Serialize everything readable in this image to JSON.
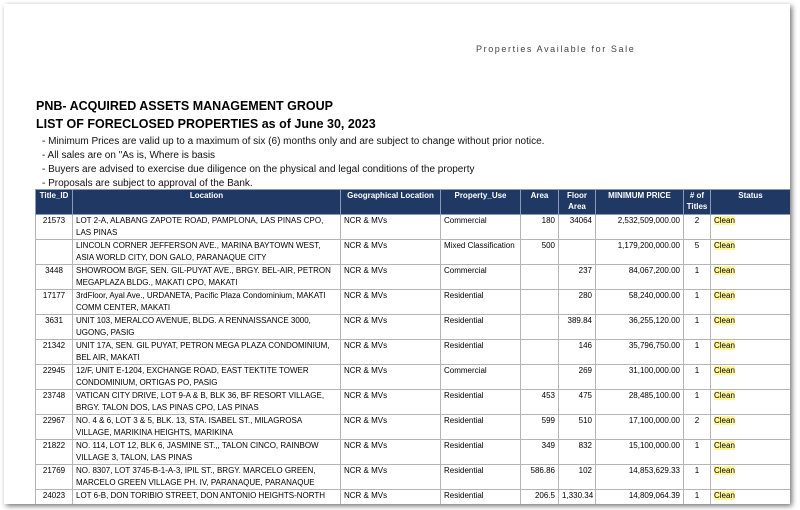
{
  "header": {
    "corner": "Properties Available for Sale",
    "org": "PNB- ACQUIRED ASSETS MANAGEMENT GROUP",
    "title": "LIST OF FORECLOSED PROPERTIES as of June 30, 2023",
    "notes": [
      "- Minimum Prices are valid up to a maximum of six (6) months only and are subject to change without prior notice.",
      "- All sales are on \"As is, Where is basis",
      "- Buyers are advised to exercise due diligence on the physical and legal conditions of the property",
      "- Proposals are subject to approval of the Bank."
    ]
  },
  "table": {
    "columns": [
      "Title_ID",
      "Location",
      "Geographical Location",
      "Property_Use",
      "Area",
      "Floor Area",
      "MINIMUM PRICE",
      "# of Titles",
      "Status"
    ],
    "rows": [
      [
        "21573",
        "LOT 2-A, ALABANG ZAPOTE ROAD, PAMPLONA, LAS PINAS CPO, LAS PINAS",
        "NCR & MVs",
        "Commercial",
        "180",
        "34064",
        "2,532,509,000.00",
        "2",
        "Clean"
      ],
      [
        null,
        "LINCOLN CORNER JEFFERSON AVE., MARINA BAYTOWN WEST, ASIA WORLD CITY, DON GALO, PARANAQUE CITY",
        "NCR & MVs",
        "Mixed Classification",
        "500",
        null,
        "1,179,200,000.00",
        "5",
        "Clean"
      ],
      [
        "3448",
        "SHOWROOM B/GF, SEN. GIL-PUYAT AVE., BRGY. BEL-AIR, PETRON MEGAPLAZA BLDG., MAKATI CPO, MAKATI",
        "NCR & MVs",
        "Commercial",
        null,
        "237",
        "84,067,200.00",
        "1",
        "Clean"
      ],
      [
        "17177",
        "3rdFloor, Ayal Ave., URDANETA, Pacific Plaza Condominium, MAKATI COMM CENTER, MAKATI",
        "NCR & MVs",
        "Residential",
        null,
        "280",
        "58,240,000.00",
        "1",
        "Clean"
      ],
      [
        "3631",
        "UNIT 103, MERALCO AVENUE, BLDG. A RENNAISSANCE 3000, UGONG, PASIG",
        "NCR & MVs",
        "Residential",
        null,
        "389.84",
        "36,255,120.00",
        "1",
        "Clean"
      ],
      [
        "21342",
        "UNIT 17A, SEN. GIL PUYAT, PETRON MEGA PLAZA CONDOMINIUM, BEL AIR, MAKATI",
        "NCR & MVs",
        "Residential",
        null,
        "146",
        "35,796,750.00",
        "1",
        "Clean"
      ],
      [
        "22945",
        "12/F, UNIT E-1204, EXCHANGE ROAD, EAST TEKTITE TOWER CONDOMINIUM, ORTIGAS PO, PASIG",
        "NCR & MVs",
        "Commercial",
        null,
        "269",
        "31,100,000.00",
        "1",
        "Clean"
      ],
      [
        "23748",
        "VATICAN CITY DRIVE, LOT 9-A & B, BLK 36, BF RESORT VILLAGE, BRGY. TALON DOS, LAS PINAS CPO, LAS PINAS",
        "NCR & MVs",
        "Residential",
        "453",
        "475",
        "28,485,100.00",
        "1",
        "Clean"
      ],
      [
        "22967",
        "NO. 4 & 6, LOT 3 & 5, BLK. 13, STA. ISABEL ST., MILAGROSA VILLAGE, MARIKINA HEIGHTS, MARIKINA",
        "NCR & MVs",
        "Residential",
        "599",
        "510",
        "17,100,000.00",
        "2",
        "Clean"
      ],
      [
        "21822",
        "NO. 114, LOT 12, BLK 6, JASMINE ST.,, TALON CINCO, RAINBOW VILLAGE 3, TALON, LAS PINAS",
        "NCR & MVs",
        "Residential",
        "349",
        "832",
        "15,100,000.00",
        "1",
        "Clean"
      ],
      [
        "21769",
        "NO. 8307, LOT 3745-B-1-A-3, IPIL ST., BRGY. MARCELO GREEN, MARCELO GREEN VILLAGE PH. IV, PARANAQUE, PARANAQUE",
        "NCR & MVs",
        "Residential",
        "586.86",
        "102",
        "14,853,629.33",
        "1",
        "Clean"
      ],
      [
        "24023",
        "LOT 6-B, DON TORIBIO STREET, DON ANTONIO HEIGHTS-NORTH SUBD",
        "NCR & MVs",
        "Residential",
        "206.5",
        "1,330.34",
        "14,809,064.39",
        "1",
        "Clean"
      ]
    ]
  }
}
